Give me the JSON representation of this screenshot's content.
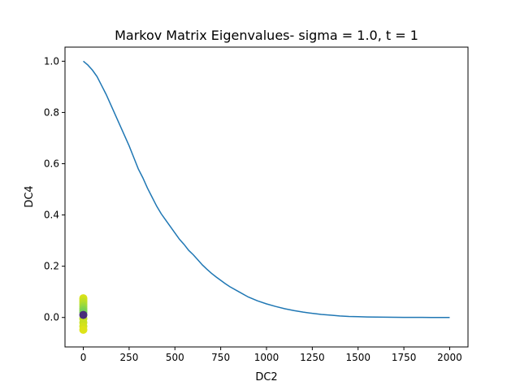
{
  "chart_data": {
    "type": "line",
    "title": "Markov Matrix Eigenvalues-  sigma = 1.0, t = 1",
    "xlabel": "DC2",
    "ylabel": "DC4",
    "xlim": [
      -100,
      2100
    ],
    "ylim": [
      -0.115,
      1.055
    ],
    "xticks": [
      0,
      250,
      500,
      750,
      1000,
      1250,
      1500,
      1750,
      2000
    ],
    "yticks": [
      0.0,
      0.2,
      0.4,
      0.6,
      0.8,
      1.0
    ],
    "xtick_labels": [
      "0",
      "250",
      "500",
      "750",
      "1000",
      "1250",
      "1500",
      "1750",
      "2000"
    ],
    "ytick_labels": [
      "0.0",
      "0.2",
      "0.4",
      "0.6",
      "0.8",
      "1.0"
    ],
    "grid": false,
    "series": [
      {
        "type": "line",
        "color": "#1f77b4",
        "x": [
          0,
          25,
          50,
          75,
          100,
          125,
          150,
          175,
          200,
          225,
          250,
          275,
          300,
          325,
          350,
          375,
          400,
          425,
          450,
          475,
          500,
          525,
          550,
          575,
          600,
          625,
          650,
          675,
          700,
          725,
          750,
          775,
          800,
          850,
          900,
          950,
          1000,
          1050,
          1100,
          1150,
          1200,
          1250,
          1300,
          1350,
          1400,
          1450,
          1500,
          1550,
          1600,
          1650,
          1700,
          1750,
          1800,
          1850,
          1900,
          1950,
          2000
        ],
        "y": [
          1.0,
          0.985,
          0.965,
          0.94,
          0.905,
          0.87,
          0.83,
          0.79,
          0.75,
          0.71,
          0.67,
          0.625,
          0.58,
          0.545,
          0.505,
          0.47,
          0.435,
          0.405,
          0.38,
          0.355,
          0.33,
          0.305,
          0.285,
          0.262,
          0.245,
          0.225,
          0.205,
          0.188,
          0.172,
          0.158,
          0.145,
          0.132,
          0.12,
          0.1,
          0.08,
          0.065,
          0.053,
          0.043,
          0.034,
          0.027,
          0.021,
          0.016,
          0.012,
          0.009,
          0.006,
          0.004,
          0.003,
          0.002,
          0.0015,
          0.001,
          0.0007,
          0.0005,
          0.0003,
          0.0002,
          0.0001,
          5e-05,
          0.0
        ]
      },
      {
        "type": "scatter",
        "x": [
          0,
          0,
          0,
          0,
          0,
          0,
          0,
          0,
          0,
          0,
          0,
          0
        ],
        "y": [
          0.075,
          0.068,
          0.06,
          0.052,
          0.044,
          0.036,
          0.028,
          0.02,
          -0.005,
          -0.02,
          -0.035,
          -0.048
        ],
        "colors": [
          "#d8e219",
          "#d0e11c",
          "#c2df23",
          "#b5de2b",
          "#a5db36",
          "#95d840",
          "#84d44b",
          "#75d054",
          "#bddf26",
          "#c8e020",
          "#d2e21b",
          "#dde318"
        ]
      },
      {
        "type": "scatter",
        "x": [
          0
        ],
        "y": [
          0.01
        ],
        "colors": [
          "#472c7a"
        ]
      }
    ]
  }
}
